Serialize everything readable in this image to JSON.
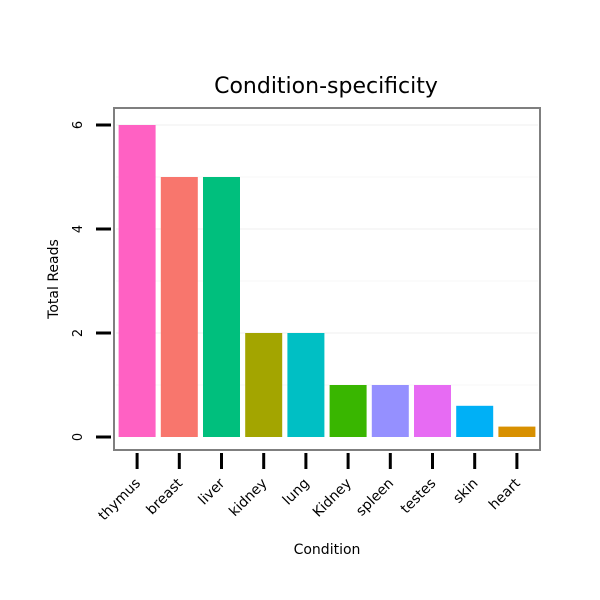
{
  "chart_data": {
    "type": "bar",
    "title": "Condition-specificity",
    "xlabel": "Condition",
    "ylabel": "Total Reads",
    "categories": [
      "thymus",
      "breast",
      "liver",
      "kidney",
      "lung",
      "Kidney",
      "spleen",
      "testes",
      "skin",
      "heart"
    ],
    "values": [
      6,
      5,
      5,
      2,
      2,
      1,
      1,
      1,
      0.6,
      0.2
    ],
    "colors": [
      "#FF61C3",
      "#F8766D",
      "#00BF7D",
      "#A3A500",
      "#00BFC4",
      "#39B600",
      "#9590FF",
      "#E76BF3",
      "#00B0F6",
      "#D89000"
    ],
    "ylim": [
      0,
      6.3
    ],
    "yticks": [
      0,
      2,
      4,
      6
    ],
    "grid": true,
    "legend": "none"
  }
}
